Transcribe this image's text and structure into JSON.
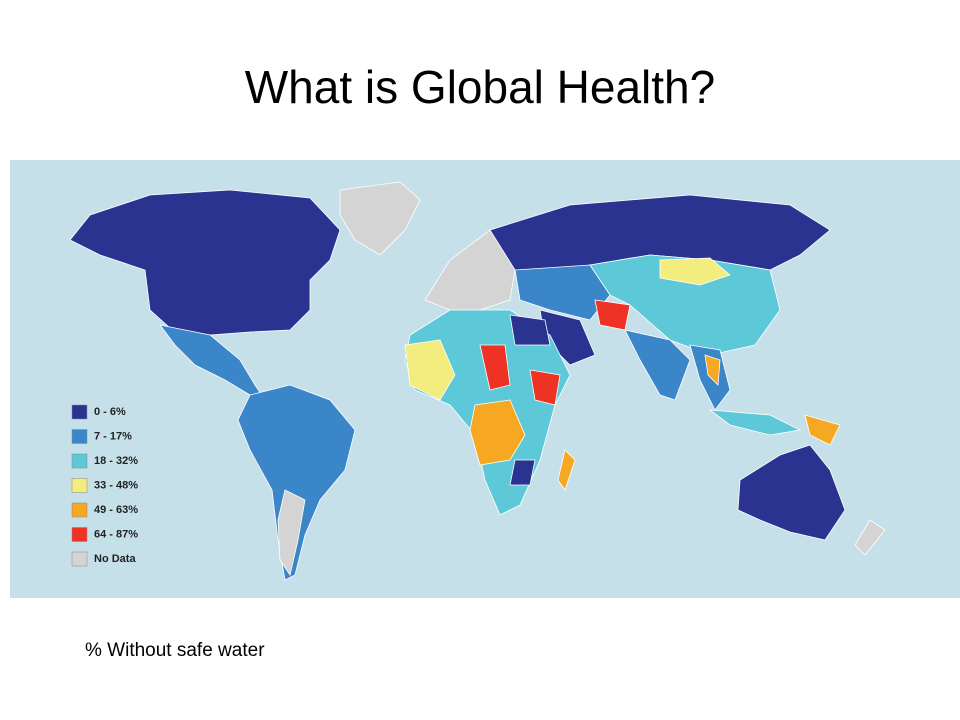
{
  "title": "What is Global Health?",
  "map": {
    "legend": [
      {
        "label": "0 - 6%",
        "color": "#2b3391"
      },
      {
        "label": "7 - 17%",
        "color": "#3a86c8"
      },
      {
        "label": "18 - 32%",
        "color": "#5cc8d8"
      },
      {
        "label": "33 - 48%",
        "color": "#f3ec7e"
      },
      {
        "label": "49 - 63%",
        "color": "#f7a823"
      },
      {
        "label": "64 - 87%",
        "color": "#ee3224"
      },
      {
        "label": "No Data",
        "color": "#d4d4d4"
      }
    ]
  },
  "caption": "% Without safe water"
}
